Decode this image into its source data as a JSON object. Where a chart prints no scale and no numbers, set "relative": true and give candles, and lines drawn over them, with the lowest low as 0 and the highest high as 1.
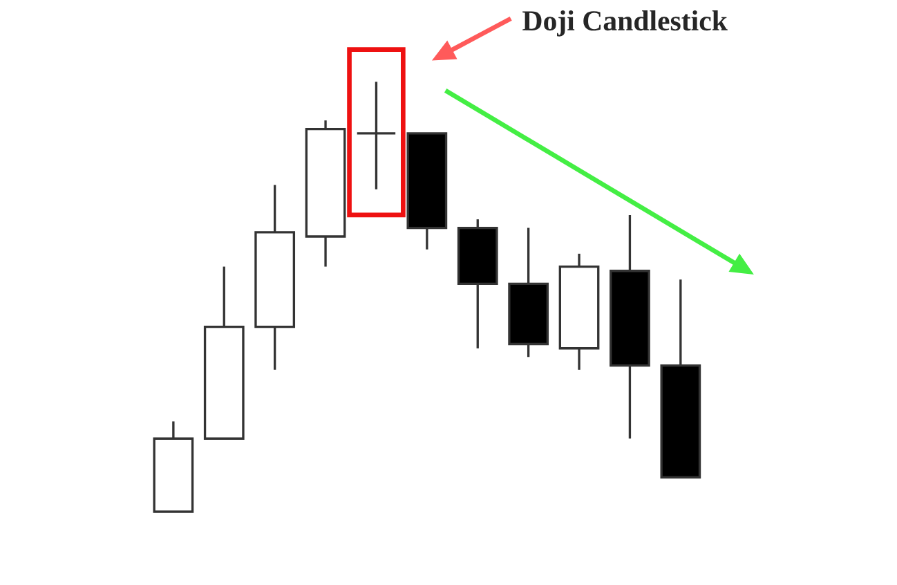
{
  "chart_data": {
    "type": "candlestick",
    "categories": [
      null,
      null,
      null,
      null,
      null,
      null,
      null,
      null,
      null,
      null,
      null
    ],
    "ohlc": [
      [
        0,
        0.21,
        0,
        0.17
      ],
      [
        0.17,
        0.57,
        0.17,
        0.43
      ],
      [
        0.43,
        0.76,
        0.33,
        0.65
      ],
      [
        0.64,
        0.91,
        0.57,
        0.89
      ],
      [
        0.88,
        1,
        0.75,
        0.88
      ],
      [
        0.88,
        0.88,
        0.61,
        0.66
      ],
      [
        0.66,
        0.68,
        0.38,
        0.53
      ],
      [
        0.53,
        0.66,
        0.36,
        0.39
      ],
      [
        0.38,
        0.6,
        0.33,
        0.57
      ],
      [
        0.56,
        0.69,
        0.17,
        0.34
      ],
      [
        0.34,
        0.54,
        0.08,
        0.08
      ]
    ],
    "colors": [
      "#ffffff",
      "#ffffff",
      "#ffffff",
      "#ffffff",
      "#333333",
      "#000000",
      "#000000",
      "#000000",
      "#ffffff",
      "#000000",
      "#000000"
    ],
    "relative": true,
    "annotations": [
      "Doji Candlestick"
    ]
  }
}
